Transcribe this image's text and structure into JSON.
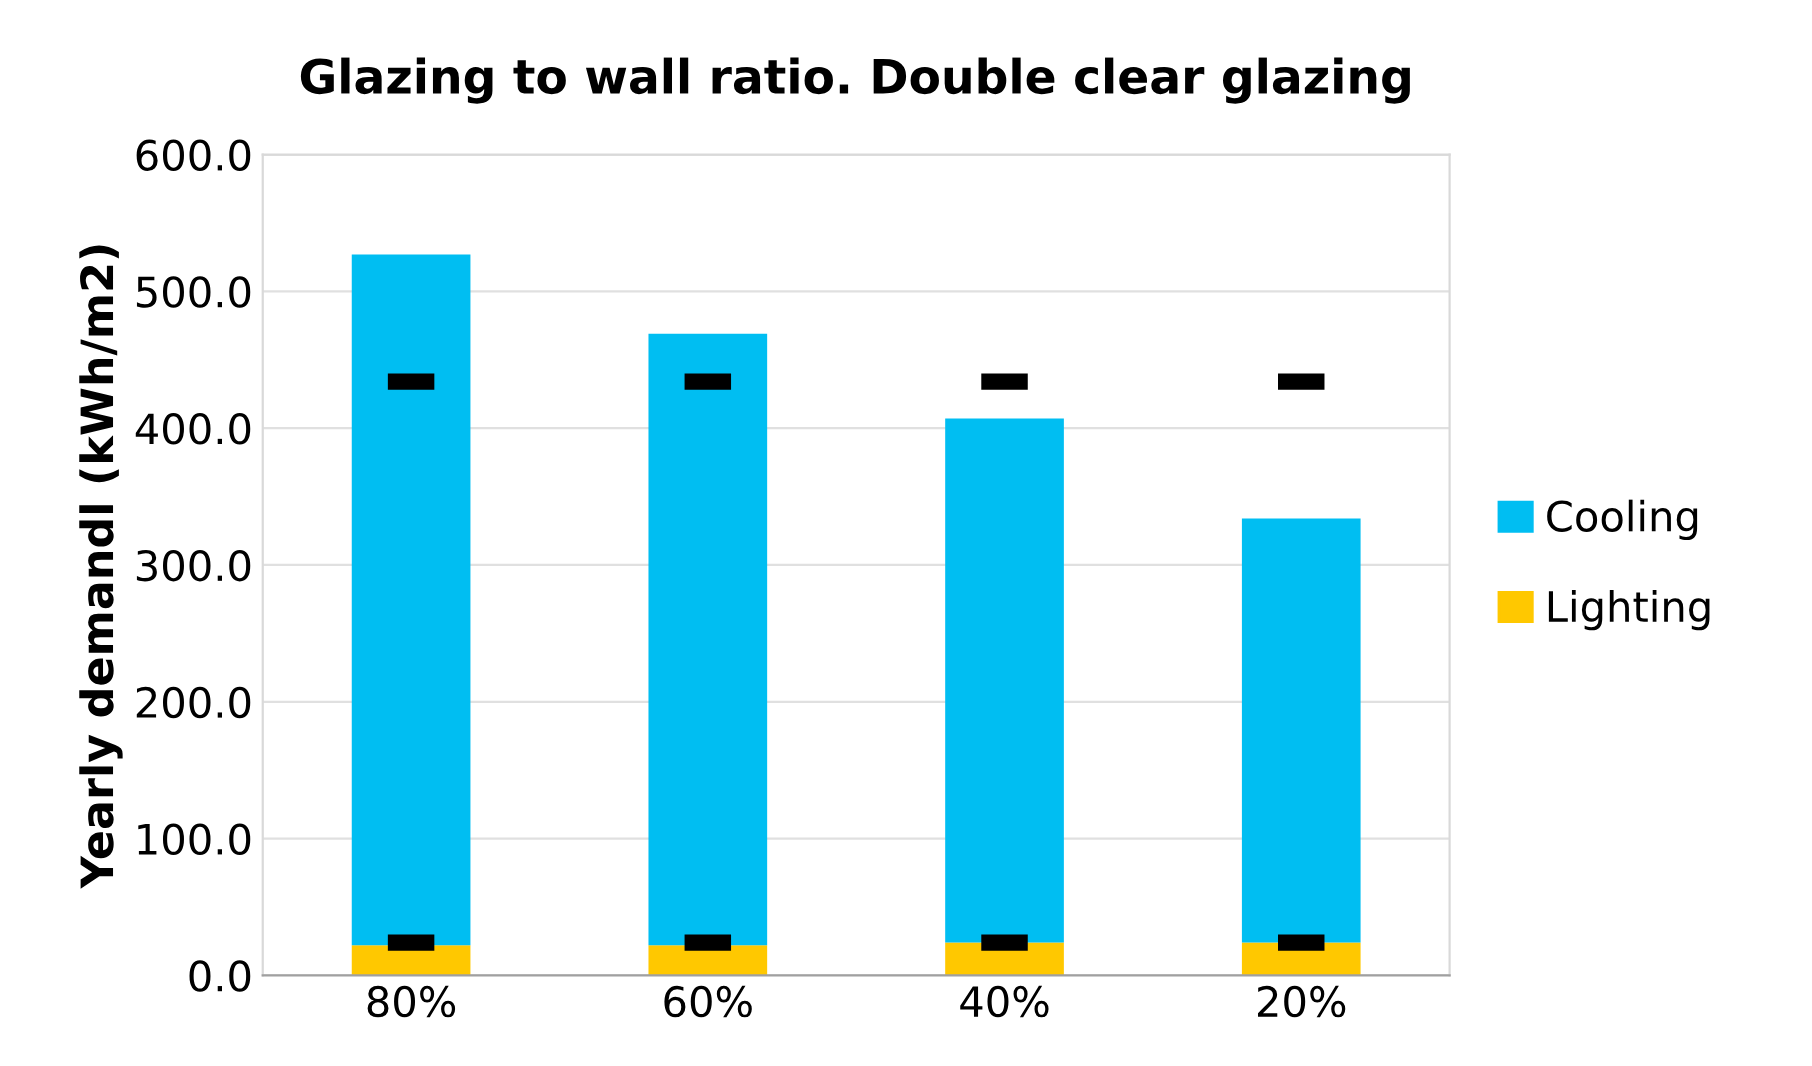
{
  "chart_data": {
    "type": "bar",
    "title": "Glazing to wall ratio. Double clear glazing",
    "ylabel": "Yearly demandl (kWh/m2)",
    "categories": [
      "80%",
      "60%",
      "40%",
      "20%"
    ],
    "stacked": true,
    "series": [
      {
        "name": "Lighting",
        "color": "#ffc800",
        "values": [
          22,
          22,
          24,
          24
        ]
      },
      {
        "name": "Cooling",
        "color": "#00bef2",
        "values": [
          505,
          447,
          383,
          310
        ]
      },
      {
        "type": "scatter",
        "color": "#000000",
        "marker": "square",
        "x": [
          "80%",
          "60%",
          "40%",
          "20%"
        ],
        "values": [
          434,
          434,
          434,
          434
        ]
      },
      {
        "type": "scatter",
        "color": "#000000",
        "marker": "square",
        "x": [
          "80%",
          "60%",
          "40%",
          "20%"
        ],
        "values": [
          24,
          24,
          24,
          24
        ]
      }
    ],
    "ylim": [
      0,
      600
    ],
    "yticks": [
      {
        "value": 0,
        "label": "0.0"
      },
      {
        "value": 100,
        "label": "100.0"
      },
      {
        "value": 200,
        "label": "200.0"
      },
      {
        "value": 300,
        "label": "300.0"
      },
      {
        "value": 400,
        "label": "400.0"
      },
      {
        "value": 500,
        "label": "500.0"
      },
      {
        "value": 600,
        "label": "600.0"
      }
    ],
    "grid": "y",
    "legend": "right"
  }
}
